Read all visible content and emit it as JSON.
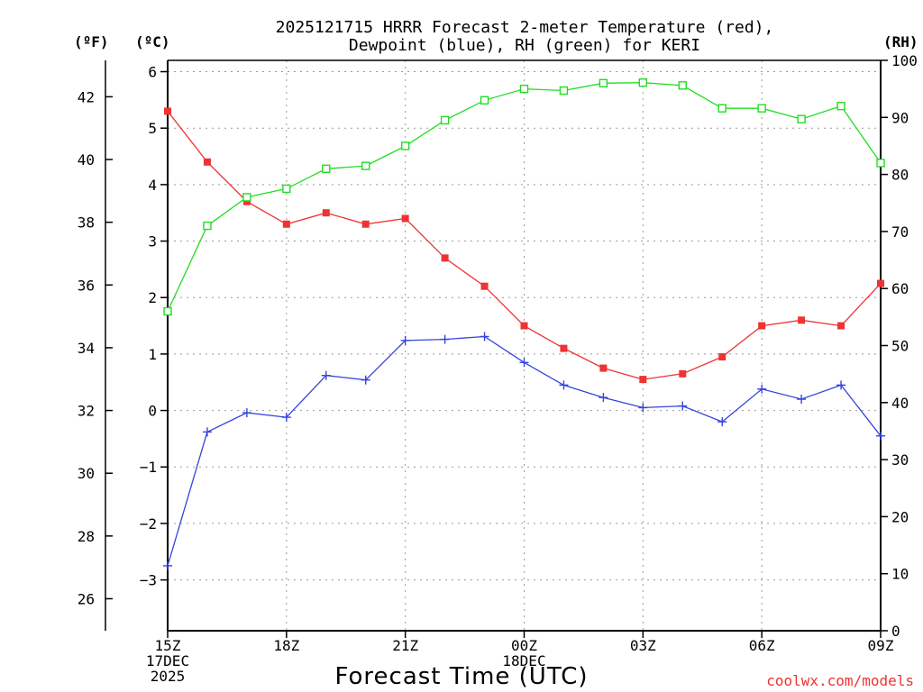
{
  "chart_data": {
    "type": "line",
    "title_lines": [
      "2025121715 HRRR Forecast 2-meter Temperature (red),",
      "Dewpoint (blue), RH (green) for KERI"
    ],
    "unit_labels": {
      "fahrenheit": "(ºF)",
      "celsius": "(ºC)",
      "rh": "(RH)"
    },
    "xlabel": "Forecast Time (UTC)",
    "credit": "coolwx.com/models",
    "x_hours": [
      0,
      1,
      2,
      3,
      4,
      5,
      6,
      7,
      8,
      9,
      10,
      11,
      12,
      13,
      14,
      15,
      16,
      17,
      18
    ],
    "x_ticks": [
      {
        "hour": 0,
        "lines": [
          "15Z",
          "17DEC",
          "2025"
        ]
      },
      {
        "hour": 3,
        "lines": [
          "18Z"
        ]
      },
      {
        "hour": 6,
        "lines": [
          "21Z"
        ]
      },
      {
        "hour": 9,
        "lines": [
          "00Z",
          "18DEC"
        ]
      },
      {
        "hour": 12,
        "lines": [
          "03Z"
        ]
      },
      {
        "hour": 15,
        "lines": [
          "06Z"
        ]
      },
      {
        "hour": 18,
        "lines": [
          "09Z"
        ]
      }
    ],
    "celsius_axis": {
      "range": [
        -3.9,
        6.2
      ],
      "ticks": [
        6,
        5,
        4,
        3,
        2,
        1,
        0,
        -1,
        -2,
        -3
      ],
      "tick_labels": [
        "6",
        "5",
        "4",
        "3",
        "2",
        "1",
        "0",
        "−1",
        "−2",
        "−3"
      ]
    },
    "fahrenheit_axis": {
      "ticks": [
        42,
        40,
        38,
        36,
        34,
        32,
        30,
        28,
        26
      ],
      "tick_labels": [
        "42",
        "40",
        "38",
        "36",
        "34",
        "32",
        "30",
        "28",
        "26"
      ]
    },
    "rh_axis": {
      "range": [
        0,
        100
      ],
      "ticks": [
        100,
        90,
        80,
        70,
        60,
        50,
        40,
        30,
        20,
        10,
        0
      ],
      "tick_labels": [
        "100",
        "90",
        "80",
        "70",
        "60",
        "50",
        "40",
        "30",
        "20",
        "10",
        "0"
      ]
    },
    "grid": true,
    "series": [
      {
        "name": "Temperature",
        "axis": "celsius",
        "color": "#ee3333",
        "marker": "filled-square",
        "values": [
          5.3,
          4.4,
          3.7,
          3.3,
          3.5,
          3.3,
          3.4,
          2.7,
          2.2,
          1.5,
          1.1,
          0.75,
          0.55,
          0.65,
          0.95,
          1.5,
          1.6,
          1.5,
          2.25
        ]
      },
      {
        "name": "Dewpoint",
        "axis": "celsius",
        "color": "#3344dd",
        "marker": "plus",
        "values": [
          -2.75,
          -0.38,
          -0.04,
          -0.12,
          0.62,
          0.54,
          1.24,
          1.26,
          1.31,
          0.85,
          0.45,
          0.23,
          0.05,
          0.08,
          -0.2,
          0.38,
          0.2,
          0.45,
          -0.45
        ]
      },
      {
        "name": "RH",
        "axis": "rh",
        "color": "#22dd22",
        "marker": "open-square",
        "values": [
          56,
          71,
          76,
          77.5,
          81,
          81.5,
          85,
          89.5,
          93,
          95,
          94.7,
          96,
          96.1,
          95.6,
          91.6,
          91.6,
          89.7,
          92,
          82
        ]
      }
    ]
  }
}
